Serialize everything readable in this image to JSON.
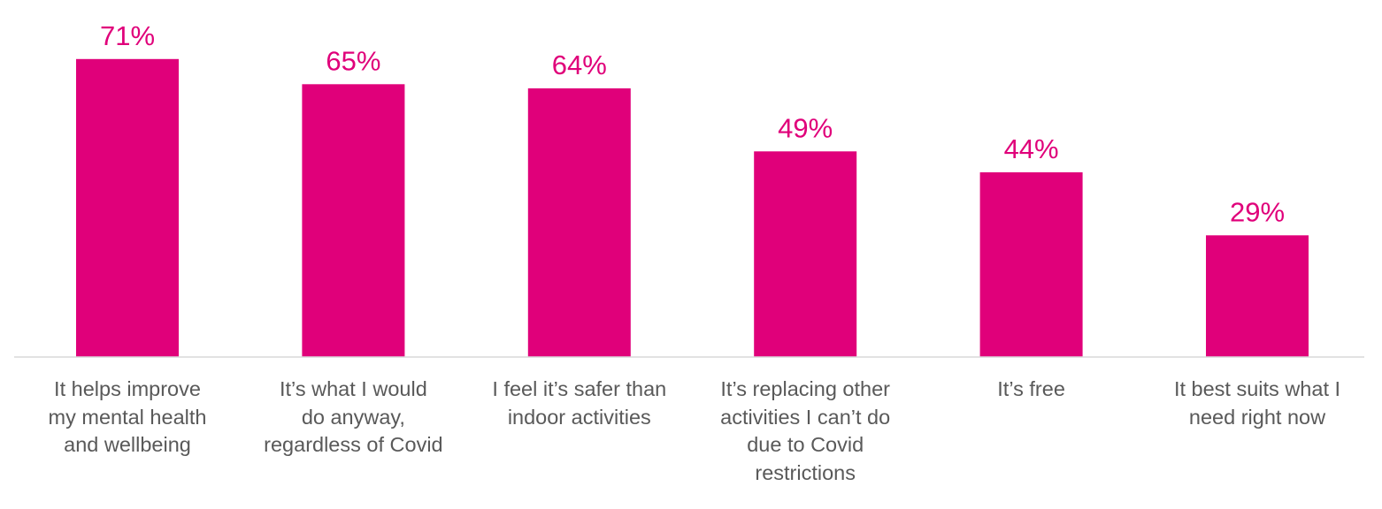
{
  "chart_data": {
    "type": "bar",
    "categories": [
      "It helps improve\nmy mental health\nand wellbeing",
      "It’s what I would\ndo anyway,\nregardless of Covid",
      "I feel it’s safer than\nindoor activities",
      "It’s replacing other\nactivities I can’t do\ndue to Covid\nrestrictions",
      "It’s free",
      "It best suits what I\nneed right now"
    ],
    "values": [
      71,
      65,
      64,
      49,
      44,
      29
    ],
    "value_labels": [
      "71%",
      "65%",
      "64%",
      "49%",
      "44%",
      "29%"
    ],
    "unit": "%",
    "ylim": [
      0,
      100
    ],
    "grid": false,
    "legend": "none",
    "bar_color": "#E0007A",
    "axis_color": "#D9D9D9",
    "label_color": "#595959"
  }
}
